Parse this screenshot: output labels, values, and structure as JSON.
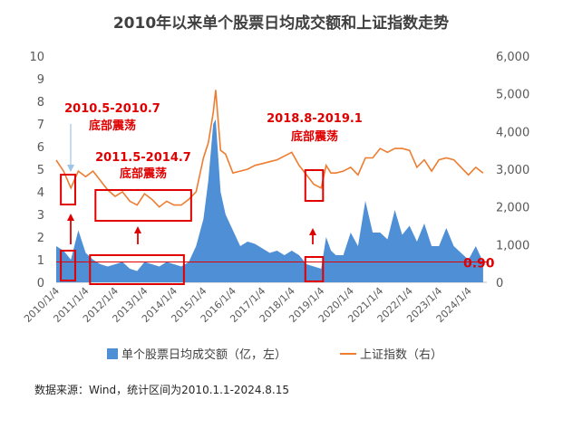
{
  "chart_data": {
    "type": "bar+line",
    "title": "2010年以来单个股票日均成交额和上证指数走势",
    "x_tick_labels": [
      "2010/1/4",
      "2011/1/4",
      "2012/1/4",
      "2013/1/4",
      "2014/1/4",
      "2015/1/4",
      "2016/1/4",
      "2017/1/4",
      "2018/1/4",
      "2019/1/4",
      "2020/1/4",
      "2021/1/4",
      "2022/1/4",
      "2023/1/4",
      "2024/1/4"
    ],
    "y_left": {
      "ticks": [
        "0",
        "1",
        "2",
        "3",
        "4",
        "5",
        "6",
        "7",
        "8",
        "9",
        "10"
      ],
      "range": [
        0,
        10
      ]
    },
    "y_right": {
      "ticks": [
        "0",
        "1,000",
        "2,000",
        "3,000",
        "4,000",
        "5,000",
        "6,000"
      ],
      "range": [
        0,
        6000
      ]
    },
    "series": [
      {
        "name": "单个股票日均成交额（亿，左）",
        "kind": "bar",
        "axis": "left",
        "color": "#4f8fd6",
        "x": [
          "2010-01",
          "2010-04",
          "2010-07",
          "2010-10",
          "2011-01",
          "2011-04",
          "2011-07",
          "2011-10",
          "2012-01",
          "2012-04",
          "2012-07",
          "2012-10",
          "2013-01",
          "2013-04",
          "2013-07",
          "2013-10",
          "2014-01",
          "2014-04",
          "2014-07",
          "2014-10",
          "2015-01",
          "2015-03",
          "2015-05",
          "2015-06",
          "2015-08",
          "2015-10",
          "2016-01",
          "2016-04",
          "2016-07",
          "2016-10",
          "2017-01",
          "2017-04",
          "2017-07",
          "2017-10",
          "2018-01",
          "2018-04",
          "2018-07",
          "2018-10",
          "2019-01",
          "2019-03",
          "2019-05",
          "2019-07",
          "2019-10",
          "2020-01",
          "2020-04",
          "2020-07",
          "2020-10",
          "2021-01",
          "2021-04",
          "2021-07",
          "2021-10",
          "2022-01",
          "2022-04",
          "2022-07",
          "2022-10",
          "2023-01",
          "2023-04",
          "2023-07",
          "2023-10",
          "2024-01",
          "2024-04",
          "2024-07"
        ],
        "values": [
          1.6,
          1.4,
          1.0,
          2.3,
          1.3,
          1.0,
          0.8,
          0.7,
          0.8,
          0.9,
          0.6,
          0.5,
          0.9,
          0.8,
          0.7,
          0.9,
          0.8,
          0.7,
          0.9,
          1.6,
          2.8,
          4.5,
          7.0,
          7.2,
          4.0,
          3.0,
          2.3,
          1.6,
          1.8,
          1.7,
          1.5,
          1.3,
          1.4,
          1.2,
          1.4,
          1.2,
          0.8,
          0.7,
          0.6,
          2.0,
          1.4,
          1.2,
          1.2,
          2.2,
          1.6,
          3.6,
          2.2,
          2.2,
          1.9,
          3.2,
          2.1,
          2.5,
          1.8,
          2.6,
          1.6,
          1.6,
          2.4,
          1.6,
          1.3,
          1.0,
          1.6,
          0.9
        ]
      },
      {
        "name": "上证指数（右）",
        "kind": "line",
        "axis": "right",
        "color": "#ed7d31",
        "x": [
          "2010-01",
          "2010-04",
          "2010-07",
          "2010-10",
          "2011-01",
          "2011-04",
          "2011-07",
          "2011-10",
          "2012-01",
          "2012-04",
          "2012-07",
          "2012-10",
          "2013-01",
          "2013-04",
          "2013-07",
          "2013-10",
          "2014-01",
          "2014-04",
          "2014-07",
          "2014-10",
          "2015-01",
          "2015-03",
          "2015-05",
          "2015-06",
          "2015-08",
          "2015-10",
          "2016-01",
          "2016-04",
          "2016-07",
          "2016-10",
          "2017-01",
          "2017-04",
          "2017-07",
          "2017-10",
          "2018-01",
          "2018-04",
          "2018-07",
          "2018-10",
          "2019-01",
          "2019-03",
          "2019-05",
          "2019-07",
          "2019-10",
          "2020-01",
          "2020-04",
          "2020-07",
          "2020-10",
          "2021-01",
          "2021-04",
          "2021-07",
          "2021-10",
          "2022-01",
          "2022-04",
          "2022-07",
          "2022-10",
          "2023-01",
          "2023-04",
          "2023-07",
          "2023-10",
          "2024-01",
          "2024-04",
          "2024-07"
        ],
        "values": [
          3240,
          2950,
          2500,
          2950,
          2800,
          2950,
          2700,
          2450,
          2280,
          2400,
          2150,
          2050,
          2350,
          2200,
          2000,
          2150,
          2050,
          2050,
          2200,
          2400,
          3300,
          3700,
          4500,
          5100,
          3500,
          3400,
          2900,
          2950,
          3000,
          3100,
          3150,
          3200,
          3250,
          3350,
          3450,
          3100,
          2850,
          2600,
          2500,
          3100,
          2900,
          2900,
          2950,
          3050,
          2850,
          3300,
          3300,
          3550,
          3450,
          3550,
          3550,
          3500,
          3050,
          3250,
          2950,
          3250,
          3300,
          3250,
          3050,
          2850,
          3050,
          2900
        ]
      }
    ],
    "reference_line": {
      "axis": "left",
      "value": 0.9,
      "label": "0.90",
      "color": "#e00000"
    },
    "annotations": [
      {
        "line1": "2010.5-2010.7",
        "line2": "底部震荡"
      },
      {
        "line1": "2011.5-2014.7",
        "line2": "底部震荡"
      },
      {
        "line1": "2018.8-2019.1",
        "line2": "底部震荡"
      }
    ],
    "legend_position": "bottom",
    "grid": false
  },
  "source_note": "数据来源：Wind，统计区间为2010.1.1-2024.8.15"
}
